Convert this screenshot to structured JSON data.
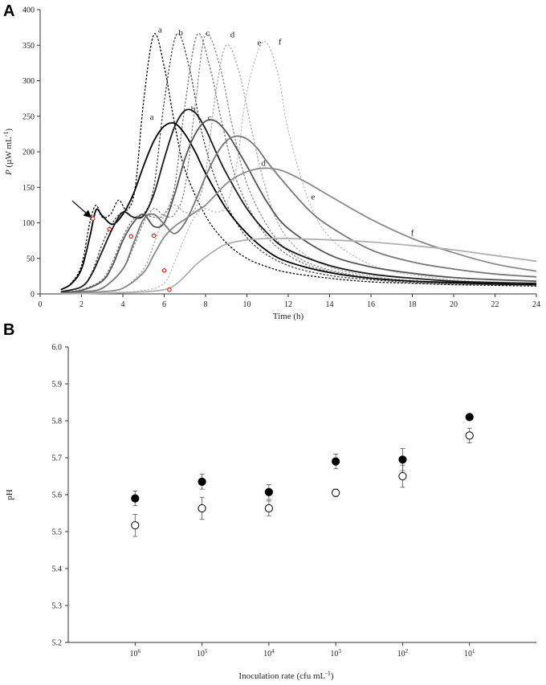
{
  "figure": {
    "panel_a_label": "A",
    "panel_b_label": "B"
  },
  "chart_data": [
    {
      "type": "line",
      "panel": "A",
      "xlabel": "Time (h)",
      "ylabel_italic": "P",
      "ylabel_rest": " (µW mL",
      "ylabel_sup": "-1",
      "ylabel_close": ")",
      "xlim": [
        0,
        24
      ],
      "ylim": [
        0,
        400
      ],
      "xticks": [
        "0",
        "2",
        "4",
        "6",
        "8",
        "10",
        "12",
        "14",
        "16",
        "18",
        "20",
        "22",
        "24"
      ],
      "yticks": [
        "0",
        "50",
        "100",
        "150",
        "200",
        "250",
        "300",
        "350",
        "400"
      ],
      "series": [
        {
          "name": "a",
          "style": "dotted",
          "color": "#000000",
          "x": [
            1,
            1.5,
            2,
            2.4,
            2.7,
            3.0,
            3.4,
            3.8,
            4.2,
            4.6,
            5.0,
            5.5,
            6.0,
            6.5,
            7.0,
            8.0,
            9.0,
            10.0,
            11.0,
            12.0,
            14.0,
            16.0,
            18.0,
            20.0,
            22.0,
            24.0
          ],
          "y": [
            6,
            15,
            40,
            100,
            125,
            108,
            112,
            132,
            118,
            150,
            270,
            365,
            320,
            240,
            175,
            110,
            72,
            50,
            38,
            30,
            22,
            17,
            15,
            13,
            12,
            11
          ]
        },
        {
          "name": "b",
          "style": "dotted",
          "color": "#444444",
          "x": [
            1,
            2,
            2.5,
            3.0,
            3.5,
            4.0,
            4.5,
            5.0,
            5.5,
            6.0,
            6.6,
            7.2,
            7.8,
            8.5,
            9.5,
            10.5,
            12.0,
            14.0,
            16.0,
            18.0,
            20.0,
            22.0,
            24.0
          ],
          "y": [
            3,
            10,
            30,
            70,
            100,
            115,
            108,
            112,
            150,
            270,
            365,
            320,
            230,
            160,
            100,
            65,
            40,
            26,
            20,
            16,
            14,
            13,
            12
          ]
        },
        {
          "name": "c",
          "style": "dotted",
          "color": "#777777",
          "x": [
            1,
            2,
            3,
            3.5,
            4.0,
            4.5,
            5.0,
            5.5,
            6.0,
            6.5,
            7.0,
            7.6,
            8.2,
            8.8,
            9.5,
            10.5,
            11.5,
            13.0,
            15.0,
            17.0,
            19.0,
            21.0,
            24.0
          ],
          "y": [
            2,
            6,
            20,
            45,
            80,
            105,
            112,
            108,
            112,
            150,
            265,
            365,
            320,
            240,
            160,
            100,
            65,
            40,
            26,
            20,
            16,
            14,
            12
          ]
        },
        {
          "name": "d",
          "style": "dotted",
          "color": "#888888",
          "x": [
            1,
            2,
            3,
            4,
            4.5,
            5.0,
            5.5,
            6.0,
            6.5,
            7.0,
            7.5,
            8.0,
            8.7,
            9.3,
            10.0,
            11.0,
            12.0,
            13.5,
            15.5,
            17.5,
            20.0,
            22.0,
            24.0
          ],
          "y": [
            1,
            3,
            8,
            35,
            65,
            100,
            120,
            110,
            112,
            150,
            265,
            365,
            320,
            235,
            155,
            95,
            60,
            38,
            25,
            19,
            15,
            13,
            12
          ]
        },
        {
          "name": "e",
          "style": "dotted",
          "color": "#aaaaaa",
          "x": [
            1,
            2,
            3,
            4,
            5,
            5.5,
            6.0,
            6.5,
            7.0,
            7.5,
            8.0,
            8.5,
            9.0,
            9.6,
            10.2,
            10.8,
            11.5,
            12.5,
            14.0,
            16.0,
            18.0,
            20.0,
            22.0,
            24.0
          ],
          "y": [
            0,
            1,
            3,
            8,
            35,
            70,
            110,
            125,
            115,
            120,
            170,
            285,
            350,
            315,
            235,
            160,
            100,
            62,
            38,
            25,
            19,
            16,
            14,
            12
          ]
        },
        {
          "name": "f",
          "style": "dotted",
          "color": "#c0c0c0",
          "x": [
            1,
            3,
            5,
            6,
            6.5,
            7.0,
            7.5,
            8.0,
            8.5,
            9.0,
            9.5,
            10.0,
            10.8,
            11.5,
            12.0,
            13.0,
            14.0,
            15.5,
            17.0,
            19.0,
            21.0,
            24.0
          ],
          "y": [
            0,
            1,
            5,
            15,
            45,
            80,
            110,
            120,
            115,
            125,
            180,
            285,
            355,
            310,
            230,
            130,
            80,
            48,
            32,
            23,
            18,
            14
          ]
        },
        {
          "name": "a",
          "style": "solid",
          "color": "#000000",
          "x": [
            1,
            1.5,
            2,
            2.4,
            2.7,
            3.0,
            3.5,
            4.0,
            4.5,
            5.0,
            5.5,
            6.0,
            6.5,
            7.0,
            7.5,
            8.0,
            9.0,
            10.0,
            11.0,
            12.0,
            14.0,
            16.0,
            18.0,
            20.0,
            22.0,
            24.0
          ],
          "y": [
            6,
            14,
            35,
            80,
            118,
            110,
            98,
            112,
            140,
            180,
            215,
            236,
            240,
            225,
            200,
            170,
            120,
            85,
            60,
            45,
            30,
            22,
            18,
            16,
            14,
            13
          ]
        },
        {
          "name": "b",
          "style": "solid",
          "color": "#1a1a1a",
          "x": [
            1,
            2,
            2.5,
            3.0,
            3.5,
            4.0,
            4.5,
            5.0,
            5.5,
            6.0,
            6.5,
            7.0,
            7.5,
            8.0,
            8.5,
            9.0,
            10.0,
            11.0,
            12.0,
            14.0,
            16.0,
            18.0,
            20.0,
            22.0,
            24.0
          ],
          "y": [
            3,
            10,
            28,
            60,
            92,
            115,
            108,
            110,
            140,
            190,
            235,
            258,
            255,
            232,
            200,
            170,
            120,
            85,
            62,
            40,
            28,
            22,
            18,
            16,
            15
          ]
        },
        {
          "name": "c",
          "style": "solid",
          "color": "#555555",
          "x": [
            1,
            2,
            3,
            3.5,
            4.0,
            4.5,
            5.0,
            5.5,
            6.0,
            6.5,
            7.0,
            7.5,
            8.0,
            8.5,
            9.0,
            9.5,
            10.0,
            11.0,
            12.0,
            14.0,
            16.0,
            18.0,
            20.0,
            22.0,
            24.0
          ],
          "y": [
            2,
            5,
            18,
            40,
            75,
            100,
            112,
            95,
            100,
            140,
            190,
            225,
            243,
            243,
            228,
            205,
            180,
            128,
            92,
            55,
            38,
            29,
            23,
            20,
            18
          ]
        },
        {
          "name": "d",
          "style": "solid",
          "color": "#777777",
          "x": [
            1,
            2,
            3,
            4,
            4.5,
            5.0,
            5.5,
            6.0,
            6.5,
            7.0,
            7.5,
            8.0,
            8.5,
            9.0,
            9.5,
            10.0,
            10.5,
            11.0,
            12.0,
            13.0,
            14.0,
            16.0,
            18.0,
            20.0,
            22.0,
            24.0
          ],
          "y": [
            1,
            3,
            8,
            35,
            70,
            105,
            112,
            98,
            85,
            100,
            130,
            165,
            195,
            215,
            222,
            218,
            205,
            185,
            150,
            118,
            95,
            62,
            45,
            35,
            28,
            24
          ]
        },
        {
          "name": "e",
          "style": "solid",
          "color": "#8a8a8a",
          "x": [
            1,
            2,
            3,
            4,
            5,
            5.5,
            6.0,
            6.5,
            7.0,
            7.5,
            8.0,
            8.5,
            9.0,
            9.5,
            10.0,
            10.5,
            11.0,
            11.5,
            12.0,
            13.0,
            14.0,
            16.0,
            18.0,
            20.0,
            22.0,
            24.0
          ],
          "y": [
            0,
            1,
            3,
            8,
            30,
            55,
            80,
            95,
            105,
            115,
            125,
            140,
            155,
            165,
            172,
            176,
            177,
            175,
            170,
            155,
            138,
            105,
            78,
            58,
            42,
            32
          ]
        },
        {
          "name": "f",
          "style": "solid",
          "color": "#b0b0b0",
          "x": [
            1,
            3,
            5,
            6,
            6.5,
            7,
            7.5,
            8,
            8.5,
            9,
            10,
            11,
            12,
            14,
            16,
            18,
            20,
            22,
            24
          ],
          "y": [
            0,
            1,
            3,
            6,
            12,
            25,
            40,
            52,
            62,
            70,
            76,
            78,
            78,
            76,
            73,
            68,
            62,
            54,
            46
          ]
        }
      ],
      "curve_labels": [
        {
          "text": "a",
          "x": 5.8,
          "y": 368
        },
        {
          "text": "b",
          "x": 6.8,
          "y": 364
        },
        {
          "text": "c",
          "x": 8.1,
          "y": 363
        },
        {
          "text": "d",
          "x": 9.3,
          "y": 361
        },
        {
          "text": "e",
          "x": 10.6,
          "y": 350
        },
        {
          "text": "f",
          "x": 11.6,
          "y": 351
        },
        {
          "text": "a",
          "x": 5.4,
          "y": 245
        },
        {
          "text": "b",
          "x": 7.4,
          "y": 256
        },
        {
          "text": "c",
          "x": 8.2,
          "y": 244
        },
        {
          "text": "d",
          "x": 10.8,
          "y": 180
        },
        {
          "text": "e",
          "x": 13.2,
          "y": 133
        },
        {
          "text": "f",
          "x": 18.0,
          "y": 82
        }
      ],
      "markers": [
        {
          "x": 2.55,
          "y": 106
        },
        {
          "x": 3.35,
          "y": 91
        },
        {
          "x": 4.4,
          "y": 81
        },
        {
          "x": 5.5,
          "y": 82
        },
        {
          "x": 6.0,
          "y": 33
        },
        {
          "x": 6.25,
          "y": 6
        }
      ],
      "arrow": {
        "x_start": 1.55,
        "y_start": 131,
        "x_end": 2.45,
        "y_end": 108
      }
    },
    {
      "type": "scatter",
      "panel": "B",
      "xlabel": "Inoculation rate (cfu mL",
      "xlabel_sup": "-1",
      "xlabel_close": ")",
      "ylabel": "pH",
      "ylim": [
        5.2,
        6.0
      ],
      "yticks": [
        "5.2",
        "5.3",
        "5.4",
        "5.5",
        "5.6",
        "5.7",
        "5.8",
        "5.9",
        "6.0"
      ],
      "categories": [
        {
          "base": "10",
          "exp": "6"
        },
        {
          "base": "10",
          "exp": "5"
        },
        {
          "base": "10",
          "exp": "4"
        },
        {
          "base": "10",
          "exp": "3"
        },
        {
          "base": "10",
          "exp": "2"
        },
        {
          "base": "10",
          "exp": "1"
        }
      ],
      "series": [
        {
          "name": "filled",
          "marker": "filled-circle",
          "color": "#000000",
          "values": [
            5.59,
            5.635,
            5.607,
            5.69,
            5.695,
            5.81
          ],
          "errors": [
            0.02,
            0.02,
            0.02,
            0.02,
            0.03,
            0.0
          ]
        },
        {
          "name": "open",
          "marker": "open-circle",
          "color": "#000000",
          "values": [
            5.517,
            5.563,
            5.563,
            5.605,
            5.65,
            5.76
          ],
          "errors": [
            0.03,
            0.03,
            0.02,
            0.01,
            0.03,
            0.02
          ]
        }
      ]
    }
  ]
}
